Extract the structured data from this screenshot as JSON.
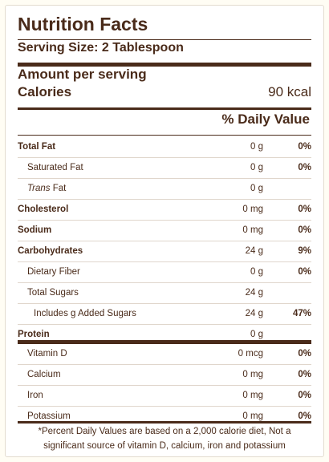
{
  "title": "Nutrition Facts",
  "serving_size": "Serving Size: 2 Tablespoon",
  "amount_per_serving": "Amount per serving",
  "calories": {
    "label": "Calories",
    "value": "90 kcal"
  },
  "daily_value_header": "% Daily Value",
  "nutrients": [
    {
      "name": "Total Fat",
      "amount": "0 g",
      "dv": "0%"
    },
    {
      "name": "Saturated Fat",
      "amount": "0 g",
      "dv": "0%"
    },
    {
      "name_italic": "Trans",
      "name_rest": " Fat",
      "amount": "0 g",
      "dv": ""
    },
    {
      "name": "Cholesterol",
      "amount": "0 mg",
      "dv": "0%"
    },
    {
      "name": "Sodium",
      "amount": "0 mg",
      "dv": "0%"
    },
    {
      "name": "Carbohydrates",
      "amount": "24 g",
      "dv": "9%"
    },
    {
      "name": "Dietary Fiber",
      "amount": "0 g",
      "dv": "0%"
    },
    {
      "name": "Total Sugars",
      "amount": "24 g",
      "dv": ""
    },
    {
      "name": "Includes g Added Sugars",
      "amount": "24 g",
      "dv": "47%"
    },
    {
      "name": "Protein",
      "amount": "0 g",
      "dv": ""
    }
  ],
  "vitamins": [
    {
      "name": "Vitamin D",
      "amount": "0 mcg",
      "dv": "0%"
    },
    {
      "name": "Calcium",
      "amount": "0 mg",
      "dv": "0%"
    },
    {
      "name": "Iron",
      "amount": "0 mg",
      "dv": "0%"
    },
    {
      "name": "Potassium",
      "amount": "0 mg",
      "dv": "0%"
    }
  ],
  "footnote": "*Percent Daily Values are based on a 2,000 calorie diet, Not a significant source of vitamin D, calcium, iron and potassium"
}
